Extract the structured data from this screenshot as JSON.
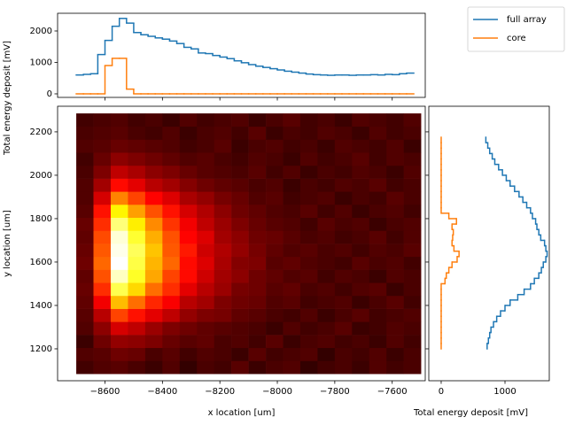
{
  "chart_data": [
    {
      "type": "heatmap",
      "xlabel": "x location [um]",
      "ylabel": "y location [um]",
      "colormap": "hot",
      "xlim": [
        -8765,
        -7485
      ],
      "ylim": [
        1053,
        2318
      ],
      "zlim": [
        5,
        100
      ],
      "xticks": [
        {
          "value": -8600,
          "label": "−8600"
        },
        {
          "value": -8400,
          "label": "−8400"
        },
        {
          "value": -8200,
          "label": "−8200"
        },
        {
          "value": -8000,
          "label": "−8000"
        },
        {
          "value": -7800,
          "label": "−7800"
        },
        {
          "value": -7600,
          "label": "−7600"
        }
      ],
      "yticks": [
        1200,
        1400,
        1600,
        1800,
        2000,
        2200
      ],
      "x": [
        -8670,
        -8610,
        -8550,
        -8490,
        -8430,
        -8370,
        -8310,
        -8250,
        -8190,
        -8130,
        -8070,
        -8010,
        -7950,
        -7890,
        -7830,
        -7770,
        -7710,
        -7650,
        -7590,
        -7530
      ],
      "y": [
        1115,
        1175,
        1235,
        1295,
        1355,
        1415,
        1475,
        1535,
        1595,
        1655,
        1715,
        1775,
        1835,
        1895,
        1955,
        2015,
        2075,
        2135,
        2195,
        2255
      ],
      "z": [
        [
          14,
          16,
          17,
          15,
          13,
          16,
          12,
          15,
          14,
          17,
          13,
          15,
          16,
          12,
          14,
          15,
          13,
          16,
          14,
          15
        ],
        [
          16,
          17,
          20,
          19,
          15,
          17,
          14,
          16,
          15,
          13,
          17,
          14,
          15,
          16,
          12,
          15,
          14,
          16,
          13,
          15
        ],
        [
          13,
          20,
          25,
          24,
          22,
          19,
          17,
          18,
          15,
          16,
          14,
          17,
          13,
          15,
          16,
          14,
          15,
          13,
          16,
          14
        ],
        [
          16,
          24,
          34,
          31,
          26,
          22,
          20,
          18,
          17,
          16,
          15,
          13,
          16,
          14,
          15,
          17,
          13,
          14,
          16,
          15
        ],
        [
          17,
          30,
          49,
          42,
          36,
          31,
          25,
          22,
          21,
          18,
          17,
          15,
          14,
          16,
          13,
          15,
          17,
          14,
          15,
          16
        ],
        [
          18,
          38,
          66,
          55,
          45,
          39,
          30,
          27,
          22,
          20,
          19,
          16,
          17,
          14,
          15,
          16,
          13,
          15,
          17,
          14
        ],
        [
          19,
          46,
          83,
          70,
          55,
          46,
          36,
          30,
          26,
          21,
          20,
          17,
          18,
          15,
          16,
          14,
          16,
          17,
          13,
          15
        ],
        [
          18,
          51,
          94,
          79,
          63,
          49,
          41,
          33,
          27,
          24,
          20,
          18,
          16,
          17,
          14,
          16,
          15,
          13,
          16,
          15
        ],
        [
          20,
          54,
          100,
          82,
          65,
          54,
          41,
          35,
          28,
          23,
          22,
          17,
          18,
          16,
          15,
          14,
          17,
          15,
          16,
          14
        ],
        [
          19,
          52,
          98,
          84,
          67,
          52,
          43,
          33,
          29,
          25,
          21,
          18,
          16,
          17,
          15,
          16,
          14,
          16,
          15,
          17
        ],
        [
          18,
          50,
          96,
          80,
          64,
          51,
          40,
          35,
          27,
          24,
          20,
          19,
          17,
          15,
          16,
          14,
          15,
          17,
          14,
          16
        ],
        [
          19,
          46,
          87,
          73,
          59,
          47,
          38,
          31,
          26,
          22,
          19,
          17,
          16,
          14,
          17,
          15,
          16,
          13,
          15,
          16
        ],
        [
          17,
          42,
          74,
          62,
          51,
          42,
          34,
          29,
          24,
          20,
          18,
          16,
          15,
          17,
          14,
          16,
          13,
          15,
          16,
          14
        ],
        [
          16,
          34,
          58,
          49,
          40,
          35,
          28,
          25,
          21,
          19,
          16,
          17,
          14,
          15,
          16,
          13,
          15,
          14,
          17,
          15
        ],
        [
          16,
          27,
          41,
          36,
          30,
          27,
          23,
          20,
          18,
          17,
          15,
          16,
          13,
          15,
          14,
          16,
          15,
          17,
          14,
          15
        ],
        [
          15,
          22,
          31,
          28,
          24,
          22,
          19,
          17,
          16,
          15,
          17,
          14,
          16,
          13,
          15,
          14,
          16,
          15,
          13,
          16
        ],
        [
          14,
          19,
          24,
          22,
          20,
          18,
          16,
          17,
          15,
          14,
          16,
          15,
          13,
          16,
          14,
          15,
          17,
          14,
          16,
          15
        ],
        [
          16,
          17,
          19,
          18,
          17,
          16,
          14,
          15,
          17,
          13,
          15,
          16,
          14,
          15,
          13,
          16,
          15,
          14,
          16,
          13
        ],
        [
          15,
          16,
          17,
          15,
          14,
          16,
          13,
          15,
          16,
          14,
          17,
          13,
          15,
          14,
          16,
          15,
          13,
          16,
          14,
          15
        ],
        [
          14,
          15,
          16,
          14,
          15,
          13,
          16,
          14,
          15,
          16,
          13,
          15,
          17,
          14,
          15,
          13,
          16,
          15,
          14,
          16
        ]
      ]
    },
    {
      "type": "histogram",
      "orientation": "vertical",
      "ylabel": "Total energy deposit [mV]",
      "ylim": [
        -113,
        2563
      ],
      "yticks": [
        0,
        1000,
        2000
      ],
      "legend": "upper right",
      "bins": [
        -8700,
        -8675,
        -8650,
        -8625,
        -8600,
        -8575,
        -8550,
        -8525,
        -8500,
        -8475,
        -8450,
        -8425,
        -8400,
        -8375,
        -8350,
        -8325,
        -8300,
        -8275,
        -8250,
        -8225,
        -8200,
        -8175,
        -8150,
        -8125,
        -8100,
        -8075,
        -8050,
        -8025,
        -8000,
        -7975,
        -7950,
        -7925,
        -7900,
        -7875,
        -7850,
        -7825,
        -7800,
        -7775,
        -7750,
        -7725,
        -7700,
        -7675,
        -7650,
        -7625,
        -7600,
        -7575,
        -7550,
        -7525
      ],
      "series": [
        {
          "name": "full array",
          "color": "#1f77b4",
          "values": [
            600,
            620,
            640,
            1250,
            1700,
            2150,
            2400,
            2250,
            1950,
            1880,
            1830,
            1780,
            1740,
            1680,
            1600,
            1480,
            1430,
            1300,
            1280,
            1220,
            1170,
            1120,
            1050,
            990,
            930,
            880,
            840,
            800,
            760,
            720,
            690,
            660,
            630,
            610,
            600,
            590,
            600,
            600,
            590,
            600,
            600,
            610,
            600,
            620,
            610,
            640,
            660
          ]
        },
        {
          "name": "core",
          "color": "#ff7f0e",
          "values": [
            0,
            0,
            0,
            0,
            900,
            1130,
            1130,
            150,
            0,
            0,
            0,
            0,
            0,
            0,
            0,
            0,
            0,
            0,
            0,
            0,
            0,
            0,
            0,
            0,
            0,
            0,
            0,
            0,
            0,
            0,
            0,
            0,
            0,
            0,
            0,
            0,
            0,
            0,
            0,
            0,
            0,
            0,
            0,
            0,
            0,
            0,
            0
          ]
        }
      ]
    },
    {
      "type": "histogram",
      "orientation": "horizontal",
      "xlabel": "Total energy deposit [mV]",
      "xlim": [
        -194,
        1694
      ],
      "xticks": [
        0,
        1000
      ],
      "bins": [
        1200,
        1225,
        1250,
        1275,
        1300,
        1325,
        1350,
        1375,
        1400,
        1425,
        1450,
        1475,
        1500,
        1525,
        1550,
        1575,
        1600,
        1625,
        1650,
        1675,
        1700,
        1725,
        1750,
        1775,
        1800,
        1825,
        1850,
        1875,
        1900,
        1925,
        1950,
        1975,
        2000,
        2025,
        2050,
        2075,
        2100,
        2125,
        2150,
        2175
      ],
      "series": [
        {
          "color": "#1f77b4",
          "values": [
            720,
            740,
            760,
            780,
            820,
            870,
            930,
            1000,
            1080,
            1200,
            1300,
            1400,
            1460,
            1530,
            1570,
            1600,
            1640,
            1660,
            1640,
            1620,
            1560,
            1530,
            1500,
            1480,
            1430,
            1400,
            1340,
            1280,
            1220,
            1150,
            1080,
            1020,
            960,
            900,
            840,
            800,
            760,
            730,
            700
          ]
        },
        {
          "color": "#ff7f0e",
          "values": [
            0,
            0,
            0,
            0,
            0,
            0,
            0,
            0,
            0,
            0,
            0,
            0,
            60,
            80,
            120,
            170,
            250,
            280,
            200,
            170,
            180,
            190,
            170,
            240,
            120,
            0,
            0,
            0,
            0,
            0,
            0,
            0,
            0,
            0,
            0,
            0,
            0,
            0,
            0
          ]
        }
      ]
    }
  ]
}
